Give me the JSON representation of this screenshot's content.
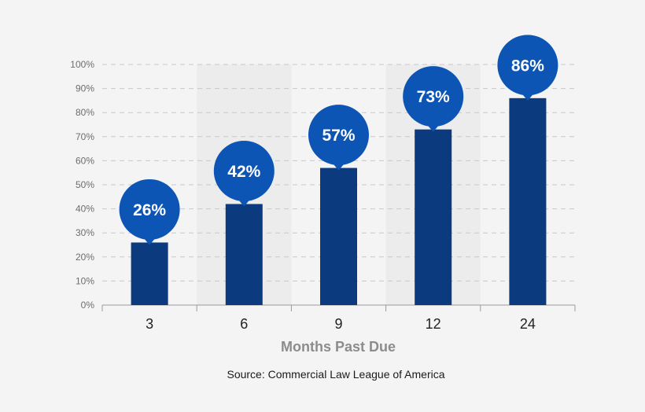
{
  "chart_data": {
    "type": "bar",
    "categories": [
      "3",
      "6",
      "9",
      "12",
      "24"
    ],
    "values": [
      26,
      42,
      57,
      73,
      86
    ],
    "data_labels": [
      "26%",
      "42%",
      "57%",
      "73%",
      "86%"
    ],
    "title": "",
    "xlabel": "Months Past Due",
    "ylabel": "",
    "ylim": [
      0,
      100
    ],
    "yticks": [
      0,
      10,
      20,
      30,
      40,
      50,
      60,
      70,
      80,
      90,
      100
    ],
    "ytick_labels": [
      "0%",
      "10%",
      "20%",
      "30%",
      "40%",
      "50%",
      "60%",
      "70%",
      "80%",
      "90%",
      "100%"
    ],
    "grid": "horizontal dashed",
    "legend": "none"
  },
  "source": "Source: Commercial Law League of America",
  "colors": {
    "background": "#f4f4f4",
    "bar": "#0b3a7e",
    "bubble": "#0d55b5",
    "grid": "#c8c8c8",
    "band_alt": "#ececec"
  }
}
